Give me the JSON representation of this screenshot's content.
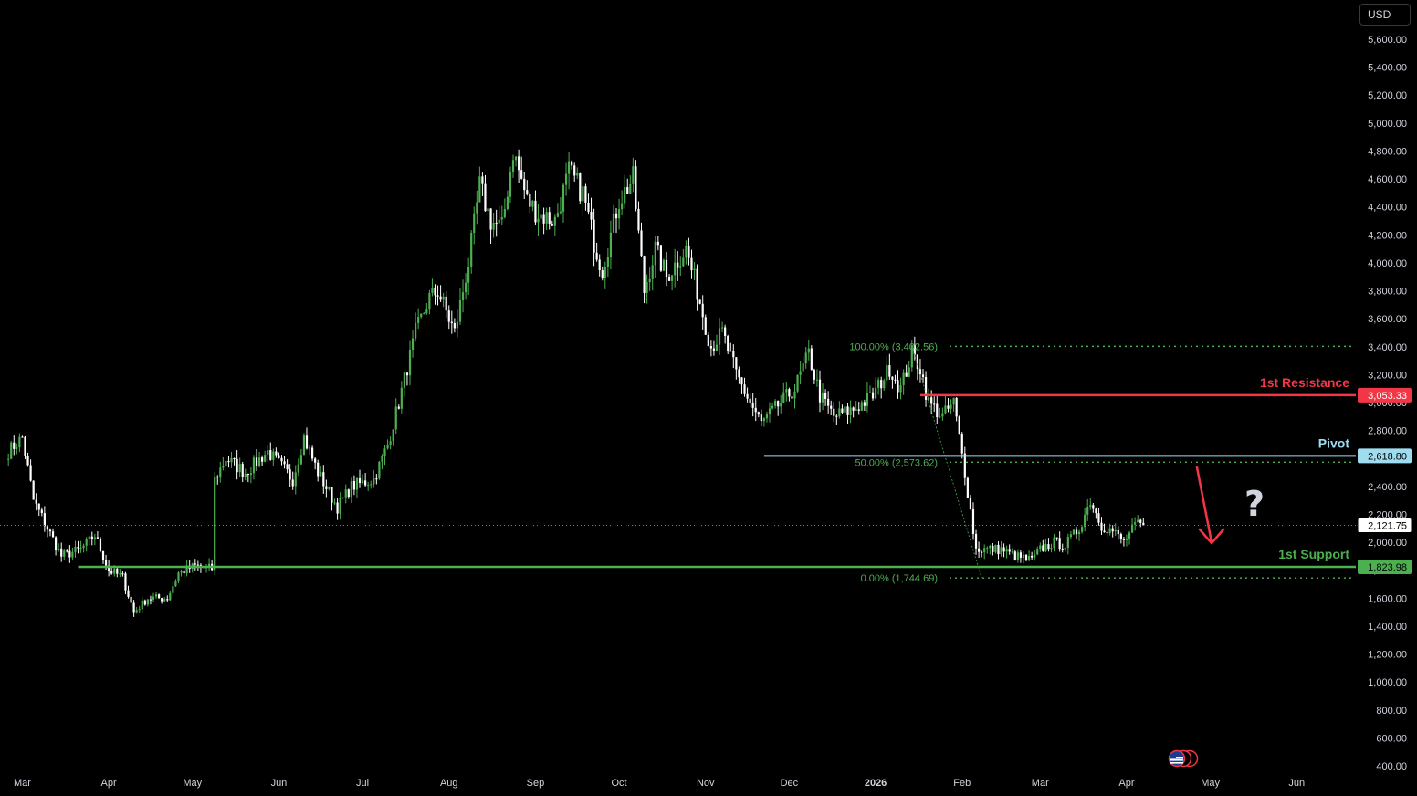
{
  "currency": "USD",
  "colors": {
    "background": "#000000",
    "candle_up": "#4caf50",
    "candle_down": "#ffffff",
    "resistance": "#f23645",
    "pivot": "#9fdcf0",
    "support": "#4caf50",
    "fib": "#4caf50",
    "arrow": "#f23645",
    "axis_text": "#d1d4dc",
    "question_mark": "#d1d4dc"
  },
  "icons": {
    "flag": "us-flag-icon"
  },
  "chart_data": {
    "type": "candlestick",
    "y_axis": {
      "min": 400,
      "max": 5600,
      "step": 200,
      "tick_labels": [
        "5,600.00",
        "5,400.00",
        "5,200.00",
        "5,000.00",
        "4,800.00",
        "4,600.00",
        "4,400.00",
        "4,200.00",
        "4,000.00",
        "3,800.00",
        "3,600.00",
        "3,400.00",
        "3,200.00",
        "3,000.00",
        "2,800.00",
        "2,600.00",
        "2,400.00",
        "2,200.00",
        "2,000.00",
        "1,800.00",
        "1,600.00",
        "1,400.00",
        "1,200.00",
        "1,000.00",
        "800.00",
        "600.00",
        "400.00"
      ]
    },
    "x_axis": {
      "tick_labels": [
        "Mar",
        "Apr",
        "May",
        "Jun",
        "Jul",
        "Aug",
        "Sep",
        "Oct",
        "Nov",
        "Dec",
        "2026",
        "Feb",
        "Mar",
        "Apr",
        "May",
        "Jun"
      ]
    },
    "grid": false,
    "current_price": 2121.75,
    "current_price_label": "2,121.75",
    "levels": [
      {
        "name": "1st Resistance",
        "value": 3053.33,
        "label": "3,053.33",
        "color": "#f23645"
      },
      {
        "name": "Pivot",
        "value": 2618.8,
        "label": "2,618.80",
        "color": "#9fdcf0"
      },
      {
        "name": "1st Support",
        "value": 1823.98,
        "label": "1,823.98",
        "color": "#4caf50"
      }
    ],
    "fibonacci": [
      {
        "ratio_label": "100.00% (3,402.56)",
        "value": 3402.56
      },
      {
        "ratio_label": "50.00% (2,573.62)",
        "value": 2573.62
      },
      {
        "ratio_label": "0.00% (1,744.69)",
        "value": 1744.69
      }
    ],
    "annotation": "?",
    "price_path": [
      [
        "2025-02-24",
        2650
      ],
      [
        "2025-03-01",
        2750
      ],
      [
        "2025-03-05",
        2300
      ],
      [
        "2025-03-10",
        2100
      ],
      [
        "2025-03-15",
        1900
      ],
      [
        "2025-03-22",
        1950
      ],
      [
        "2025-03-27",
        2050
      ],
      [
        "2025-04-01",
        1800
      ],
      [
        "2025-04-06",
        1750
      ],
      [
        "2025-04-10",
        1500
      ],
      [
        "2025-04-15",
        1600
      ],
      [
        "2025-04-22",
        1600
      ],
      [
        "2025-04-26",
        1780
      ],
      [
        "2025-05-02",
        1830
      ],
      [
        "2025-05-08",
        1810
      ],
      [
        "2025-05-09",
        2450
      ],
      [
        "2025-05-13",
        2600
      ],
      [
        "2025-05-20",
        2500
      ],
      [
        "2025-05-28",
        2650
      ],
      [
        "2025-06-06",
        2450
      ],
      [
        "2025-06-10",
        2750
      ],
      [
        "2025-06-15",
        2500
      ],
      [
        "2025-06-22",
        2250
      ],
      [
        "2025-06-27",
        2400
      ],
      [
        "2025-07-05",
        2450
      ],
      [
        "2025-07-10",
        2700
      ],
      [
        "2025-07-14",
        3000
      ],
      [
        "2025-07-20",
        3500
      ],
      [
        "2025-07-25",
        3750
      ],
      [
        "2025-07-28",
        3800
      ],
      [
        "2025-08-03",
        3500
      ],
      [
        "2025-08-08",
        4000
      ],
      [
        "2025-08-12",
        4550
      ],
      [
        "2025-08-16",
        4300
      ],
      [
        "2025-08-20",
        4250
      ],
      [
        "2025-08-24",
        4800
      ],
      [
        "2025-08-29",
        4450
      ],
      [
        "2025-09-02",
        4350
      ],
      [
        "2025-09-08",
        4300
      ],
      [
        "2025-09-13",
        4650
      ],
      [
        "2025-09-18",
        4500
      ],
      [
        "2025-09-22",
        4150
      ],
      [
        "2025-09-25",
        3950
      ],
      [
        "2025-10-01",
        4450
      ],
      [
        "2025-10-06",
        4600
      ],
      [
        "2025-10-10",
        3800
      ],
      [
        "2025-10-14",
        4100
      ],
      [
        "2025-10-18",
        3900
      ],
      [
        "2025-10-25",
        4100
      ],
      [
        "2025-10-29",
        3800
      ],
      [
        "2025-11-03",
        3400
      ],
      [
        "2025-11-07",
        3500
      ],
      [
        "2025-11-12",
        3200
      ],
      [
        "2025-11-17",
        3000
      ],
      [
        "2025-11-21",
        2850
      ],
      [
        "2025-11-28",
        3000
      ],
      [
        "2025-12-03",
        3100
      ],
      [
        "2025-12-08",
        3350
      ],
      [
        "2025-12-12",
        3050
      ],
      [
        "2025-12-17",
        2900
      ],
      [
        "2025-12-24",
        2950
      ],
      [
        "2025-12-31",
        3050
      ],
      [
        "2026-01-06",
        3250
      ],
      [
        "2026-01-10",
        3100
      ],
      [
        "2026-01-14",
        3350
      ],
      [
        "2026-01-17",
        3250
      ],
      [
        "2026-01-20",
        3000
      ],
      [
        "2026-01-25",
        2900
      ],
      [
        "2026-01-29",
        3000
      ],
      [
        "2026-02-02",
        2500
      ],
      [
        "2026-02-06",
        1950
      ],
      [
        "2026-02-10",
        1950
      ],
      [
        "2026-02-15",
        1950
      ],
      [
        "2026-02-20",
        1900
      ],
      [
        "2026-02-26",
        1870
      ],
      [
        "2026-03-01",
        1950
      ],
      [
        "2026-03-06",
        2000
      ],
      [
        "2026-03-10",
        1980
      ],
      [
        "2026-03-15",
        2100
      ],
      [
        "2026-03-19",
        2300
      ],
      [
        "2026-03-23",
        2120
      ],
      [
        "2026-03-27",
        2080
      ],
      [
        "2026-03-31",
        2000
      ],
      [
        "2026-04-04",
        2120
      ],
      [
        "2026-04-07",
        2121.75
      ]
    ]
  }
}
